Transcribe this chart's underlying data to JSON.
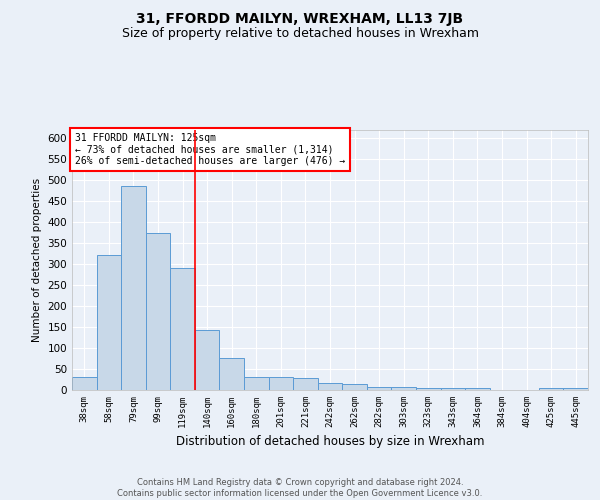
{
  "title": "31, FFORDD MAILYN, WREXHAM, LL13 7JB",
  "subtitle": "Size of property relative to detached houses in Wrexham",
  "xlabel": "Distribution of detached houses by size in Wrexham",
  "ylabel": "Number of detached properties",
  "categories": [
    "38sqm",
    "58sqm",
    "79sqm",
    "99sqm",
    "119sqm",
    "140sqm",
    "160sqm",
    "180sqm",
    "201sqm",
    "221sqm",
    "242sqm",
    "262sqm",
    "282sqm",
    "303sqm",
    "323sqm",
    "343sqm",
    "364sqm",
    "384sqm",
    "404sqm",
    "425sqm",
    "445sqm"
  ],
  "values": [
    30,
    322,
    487,
    375,
    290,
    143,
    76,
    32,
    31,
    29,
    16,
    15,
    8,
    6,
    5,
    5,
    5,
    0,
    0,
    5,
    5
  ],
  "bar_color": "#c8d8e8",
  "bar_edge_color": "#5b9bd5",
  "vline_x": 4.5,
  "vline_color": "red",
  "annotation_text": "31 FFORDD MAILYN: 125sqm\n← 73% of detached houses are smaller (1,314)\n26% of semi-detached houses are larger (476) →",
  "annotation_box_color": "white",
  "annotation_box_edge_color": "red",
  "ylim": [
    0,
    620
  ],
  "yticks": [
    0,
    50,
    100,
    150,
    200,
    250,
    300,
    350,
    400,
    450,
    500,
    550,
    600
  ],
  "bg_color": "#eaf0f8",
  "plot_bg_color": "#eaf0f8",
  "footer": "Contains HM Land Registry data © Crown copyright and database right 2024.\nContains public sector information licensed under the Open Government Licence v3.0.",
  "title_fontsize": 10,
  "subtitle_fontsize": 9,
  "footer_fontsize": 6
}
